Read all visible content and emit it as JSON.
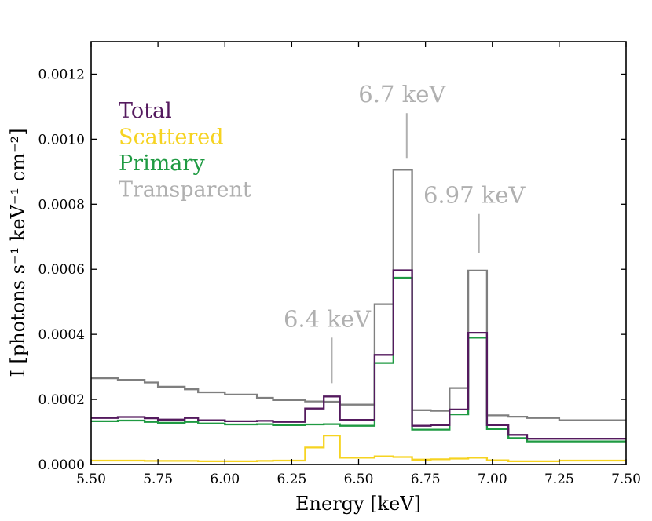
{
  "chart_data": {
    "type": "line",
    "step": true,
    "title": "",
    "xlabel": "Energy [keV]",
    "ylabel": "I [photons s⁻¹ keV⁻¹ cm⁻²]",
    "xlim": [
      5.5,
      7.5
    ],
    "ylim": [
      0,
      0.0013
    ],
    "xticks": [
      5.5,
      5.75,
      6.0,
      6.25,
      6.5,
      6.75,
      7.0,
      7.25,
      7.5
    ],
    "xtick_labels": [
      "5.50",
      "5.75",
      "6.00",
      "6.25",
      "6.50",
      "6.75",
      "7.00",
      "7.25",
      "7.50"
    ],
    "yticks": [
      0,
      0.0002,
      0.0004,
      0.0006,
      0.0008,
      0.001,
      0.0012
    ],
    "ytick_labels": [
      "0.0000",
      "0.0002",
      "0.0004",
      "0.0006",
      "0.0008",
      "0.0010",
      "0.0012"
    ],
    "legend_position": "top-left",
    "bin_edges": [
      5.5,
      5.6,
      5.7,
      5.75,
      5.85,
      5.9,
      6.0,
      6.12,
      6.18,
      6.3,
      6.37,
      6.43,
      6.56,
      6.63,
      6.7,
      6.77,
      6.84,
      6.91,
      6.98,
      7.06,
      7.13,
      7.25,
      7.5
    ],
    "series": [
      {
        "name": "Total",
        "color": "#541a5e",
        "values": [
          0.000143,
          0.000146,
          0.000142,
          0.000138,
          0.000143,
          0.000136,
          0.000133,
          0.000134,
          0.000131,
          0.000172,
          0.000209,
          0.000137,
          0.000337,
          0.000597,
          0.000119,
          0.000121,
          0.000169,
          0.000405,
          0.000121,
          9.1e-05,
          7.9e-05,
          7.9e-05
        ]
      },
      {
        "name": "Scattered",
        "color": "#f6d321",
        "values": [
          1.2e-05,
          1.2e-05,
          1.1e-05,
          1.1e-05,
          1.1e-05,
          1e-05,
          1e-05,
          1.1e-05,
          1.2e-05,
          5.2e-05,
          8.9e-05,
          2.1e-05,
          2.5e-05,
          2.3e-05,
          1.5e-05,
          1.6e-05,
          1.8e-05,
          2.1e-05,
          1.3e-05,
          1e-05,
          1e-05,
          1.2e-05
        ]
      },
      {
        "name": "Primary",
        "color": "#1f9a42",
        "values": [
          0.000133,
          0.000135,
          0.000131,
          0.000128,
          0.000131,
          0.000126,
          0.000123,
          0.000124,
          0.000121,
          0.000123,
          0.000124,
          0.000119,
          0.000312,
          0.000574,
          0.000107,
          0.000107,
          0.000154,
          0.00039,
          0.000109,
          8.1e-05,
          7.1e-05,
          7.1e-05
        ]
      },
      {
        "name": "Transparent",
        "color": "#7f7f7f",
        "values": [
          0.000265,
          0.00026,
          0.000252,
          0.000239,
          0.000231,
          0.000222,
          0.000215,
          0.000205,
          0.000198,
          0.000194,
          0.000193,
          0.000184,
          0.000493,
          0.000906,
          0.000167,
          0.000165,
          0.000235,
          0.000596,
          0.000151,
          0.000147,
          0.000143,
          0.000136
        ]
      }
    ],
    "legend_entries": [
      {
        "label": "Total",
        "color": "#541a5e"
      },
      {
        "label": "Scattered",
        "color": "#f6d321"
      },
      {
        "label": "Primary",
        "color": "#1f9a42"
      },
      {
        "label": "Transparent",
        "color": "#b0b0b0"
      }
    ],
    "annotations": [
      {
        "text": "6.7 keV",
        "x": 6.68,
        "line_from": 0.00108,
        "line_to": 0.00094
      },
      {
        "text": "6.97 keV",
        "x": 6.95,
        "line_from": 0.00077,
        "line_to": 0.00065
      },
      {
        "text": "6.4 keV",
        "x": 6.4,
        "line_from": 0.00039,
        "line_to": 0.00025
      }
    ]
  }
}
